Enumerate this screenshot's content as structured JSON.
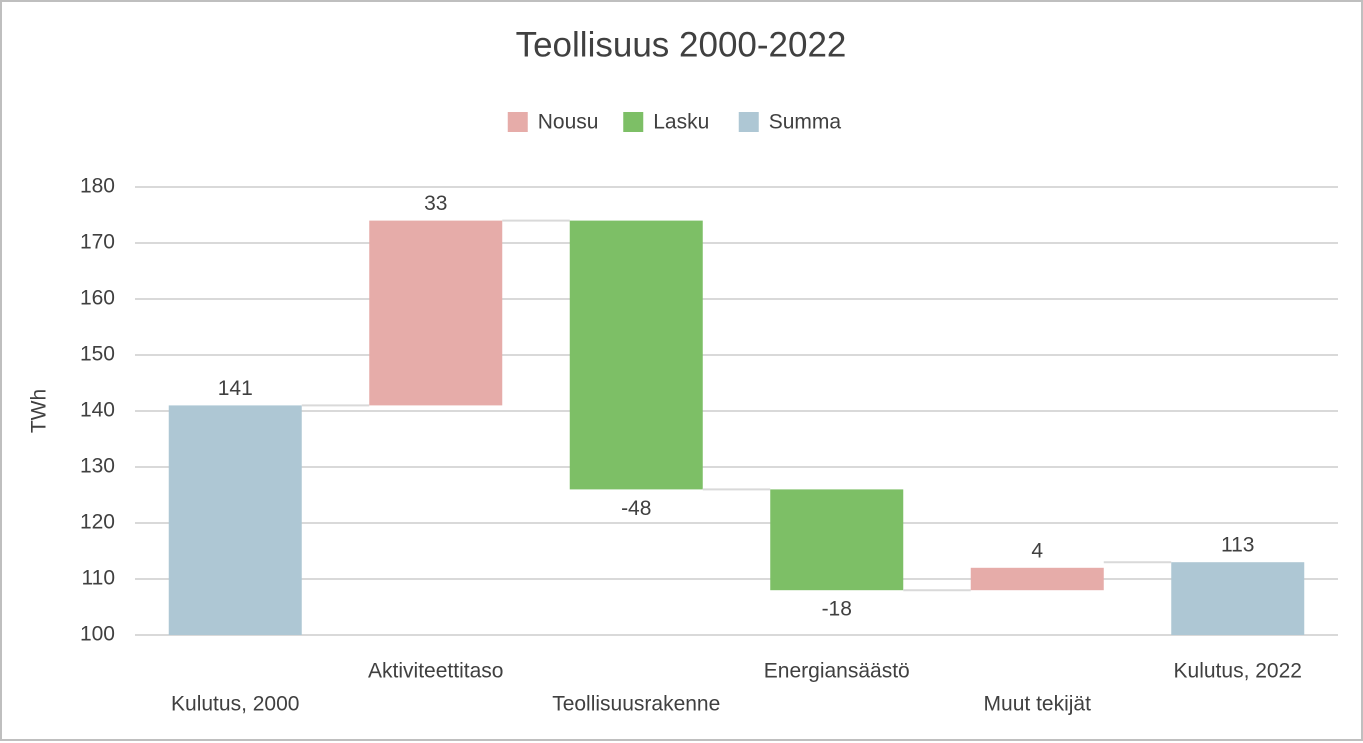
{
  "chart_data": {
    "type": "waterfall",
    "title": "Teollisuus 2000-2022",
    "y_label": "TWh",
    "categories": [
      "Kulutus, 2000",
      "Aktiviteettitaso",
      "Teollisuusrakenne",
      "Energiansäästö",
      "Muut tekijät",
      "Kulutus, 2022"
    ],
    "series": [
      {
        "name": "Nousu",
        "color": "#e6aca9",
        "values": [
          null,
          33,
          null,
          null,
          4,
          null
        ]
      },
      {
        "name": "Lasku",
        "color": "#7dbf66",
        "values": [
          null,
          null,
          -48,
          -18,
          null,
          null
        ]
      },
      {
        "name": "Summa",
        "color": "#aec7d4",
        "values": [
          141,
          null,
          null,
          null,
          null,
          113
        ]
      }
    ],
    "ylim": [
      100,
      180
    ],
    "yticks": [
      100,
      110,
      120,
      130,
      140,
      150,
      160,
      170,
      180
    ],
    "grid": true,
    "legend": "top"
  }
}
